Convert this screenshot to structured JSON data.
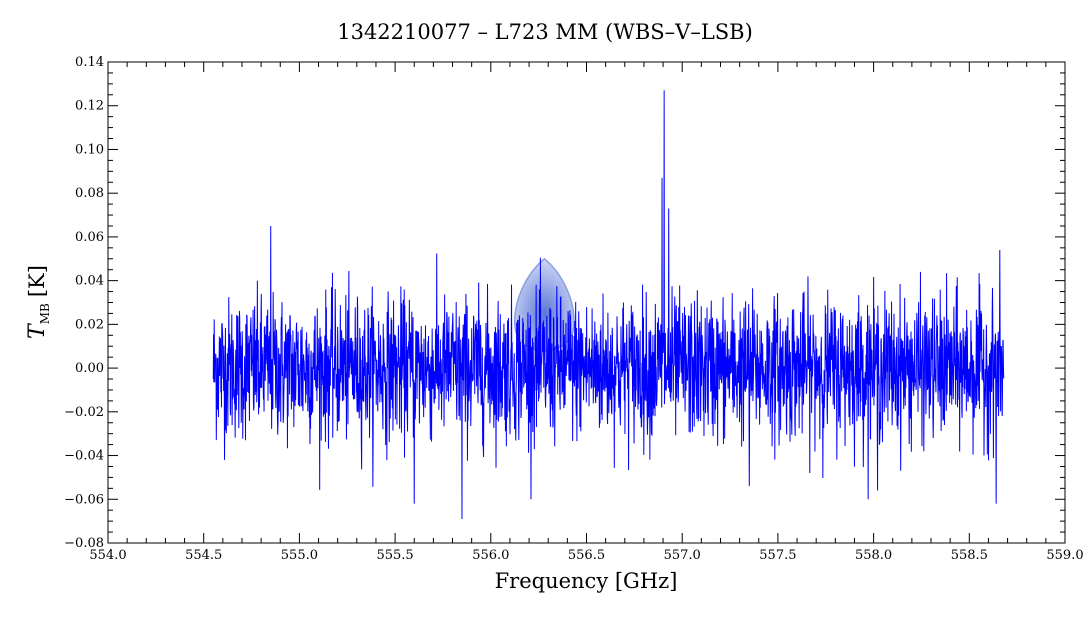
{
  "chart_data": {
    "type": "line",
    "title": "1342210077 – L723 MM (WBS–V–LSB)",
    "xlabel": "Frequency [GHz]",
    "ylabel_symbol": "T",
    "ylabel_subscript": "MB",
    "ylabel_unit": "[K]",
    "xlim": [
      554.0,
      559.0
    ],
    "ylim": [
      -0.08,
      0.14
    ],
    "x_ticks": [
      "554.0",
      "554.5",
      "555.0",
      "555.5",
      "556.0",
      "556.5",
      "557.0",
      "557.5",
      "558.0",
      "558.5",
      "559.0"
    ],
    "y_ticks": [
      "−0.08",
      "−0.06",
      "−0.04",
      "−0.02",
      "0.00",
      "0.02",
      "0.04",
      "0.06",
      "0.08",
      "0.10",
      "0.12",
      "0.14"
    ],
    "grid": false,
    "legend": "none",
    "line_color": "#0000ff",
    "watermark_color": "#3f5fd0",
    "series": [
      {
        "x_range": [
          554.55,
          558.68
        ],
        "noise_rms": 0.016,
        "features": [
          {
            "x": 556.905,
            "y": 0.127
          },
          {
            "x": 556.895,
            "y": 0.087
          },
          {
            "x": 556.93,
            "y": 0.073
          },
          {
            "x": 554.85,
            "y": 0.065
          },
          {
            "x": 555.85,
            "y": -0.069
          },
          {
            "x": 555.6,
            "y": -0.062
          },
          {
            "x": 558.64,
            "y": -0.062
          },
          {
            "x": 558.66,
            "y": 0.054
          },
          {
            "x": 558.02,
            "y": -0.056
          },
          {
            "x": 557.35,
            "y": -0.054
          }
        ]
      }
    ]
  }
}
